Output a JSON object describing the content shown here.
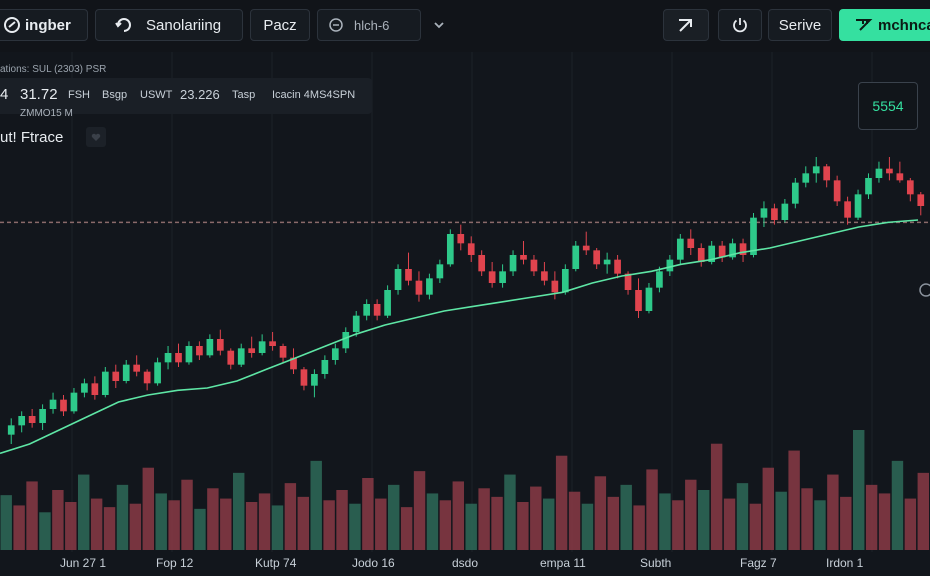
{
  "toolbar": {
    "logo_label": "ingber",
    "symbol_search_label": "Sanolariing",
    "interval_label": "Pacz",
    "compare_label": "hlch-6",
    "replay_icon": "arrow-up-right-icon",
    "power_icon": "power-icon",
    "save_label": "Serive",
    "publish_label": "mchncal"
  },
  "legend": {
    "symbol_line": "ations: SUL (2303) PSR",
    "open_value": "31.72",
    "item1": "FSH",
    "item2": "Bsgp",
    "item3": "USWT",
    "item4": "23.226",
    "item5": "Tasp",
    "item6": "Icacin 4MS4SPN",
    "sub_line": "ZMMO15 M",
    "indicator_label": "ut! Ftrace",
    "prefix": "4"
  },
  "price_label": "5554",
  "x_axis_labels": [
    "Jun 27 1",
    "Fop 12",
    "Kutp 74",
    "Jodo 16",
    "dsdo",
    "empa 11",
    "Subth",
    "Fagz 7",
    "Irdon 1"
  ],
  "chart_data": {
    "type": "candlestick",
    "candles": [
      [
        28.6,
        29.3,
        28.2,
        29.0
      ],
      [
        29.0,
        29.6,
        28.7,
        29.4
      ],
      [
        29.4,
        29.7,
        28.9,
        29.1
      ],
      [
        29.1,
        29.9,
        28.8,
        29.7
      ],
      [
        29.7,
        30.4,
        29.5,
        30.1
      ],
      [
        30.1,
        30.3,
        29.4,
        29.6
      ],
      [
        29.6,
        30.6,
        29.5,
        30.4
      ],
      [
        30.4,
        31.0,
        30.2,
        30.8
      ],
      [
        30.8,
        31.1,
        30.1,
        30.3
      ],
      [
        30.3,
        31.5,
        30.2,
        31.3
      ],
      [
        31.3,
        31.6,
        30.6,
        30.9
      ],
      [
        30.9,
        31.8,
        30.8,
        31.6
      ],
      [
        31.6,
        32.0,
        31.1,
        31.3
      ],
      [
        31.3,
        31.4,
        30.5,
        30.8
      ],
      [
        30.8,
        31.9,
        30.7,
        31.7
      ],
      [
        31.7,
        32.4,
        31.4,
        32.1
      ],
      [
        32.1,
        32.5,
        31.5,
        31.7
      ],
      [
        31.7,
        32.6,
        31.6,
        32.4
      ],
      [
        32.4,
        32.6,
        31.8,
        32.0
      ],
      [
        32.0,
        32.9,
        31.9,
        32.7
      ],
      [
        32.7,
        33.1,
        32.0,
        32.2
      ],
      [
        32.2,
        32.3,
        31.4,
        31.6
      ],
      [
        31.6,
        32.5,
        31.5,
        32.3
      ],
      [
        32.3,
        32.8,
        31.9,
        32.1
      ],
      [
        32.1,
        32.9,
        32.0,
        32.6
      ],
      [
        32.6,
        33.0,
        32.2,
        32.4
      ],
      [
        32.4,
        32.5,
        31.7,
        31.9
      ],
      [
        31.9,
        32.3,
        31.2,
        31.4
      ],
      [
        31.4,
        31.5,
        30.5,
        30.7
      ],
      [
        30.7,
        31.4,
        30.2,
        31.2
      ],
      [
        31.2,
        32.0,
        31.0,
        31.8
      ],
      [
        31.8,
        32.5,
        31.6,
        32.3
      ],
      [
        32.3,
        33.2,
        32.1,
        33.0
      ],
      [
        33.0,
        33.9,
        32.8,
        33.7
      ],
      [
        33.7,
        34.4,
        33.5,
        34.2
      ],
      [
        34.2,
        34.4,
        33.5,
        33.7
      ],
      [
        33.7,
        35.0,
        33.6,
        34.8
      ],
      [
        34.8,
        35.9,
        34.6,
        35.7
      ],
      [
        35.7,
        36.4,
        35.0,
        35.2
      ],
      [
        35.2,
        35.6,
        34.3,
        34.6
      ],
      [
        34.6,
        35.5,
        34.4,
        35.3
      ],
      [
        35.3,
        36.1,
        35.1,
        35.9
      ],
      [
        35.9,
        37.4,
        35.8,
        37.2
      ],
      [
        37.2,
        37.6,
        36.5,
        36.8
      ],
      [
        36.8,
        37.1,
        36.0,
        36.3
      ],
      [
        36.3,
        36.5,
        35.4,
        35.6
      ],
      [
        35.6,
        36.0,
        34.9,
        35.1
      ],
      [
        35.1,
        35.9,
        34.9,
        35.6
      ],
      [
        35.6,
        36.5,
        35.4,
        36.3
      ],
      [
        36.3,
        36.9,
        35.9,
        36.1
      ],
      [
        36.1,
        36.3,
        35.4,
        35.6
      ],
      [
        35.6,
        36.0,
        35.0,
        35.2
      ],
      [
        35.2,
        35.6,
        34.4,
        34.7
      ],
      [
        34.7,
        35.9,
        34.6,
        35.7
      ],
      [
        35.7,
        36.9,
        35.6,
        36.7
      ],
      [
        36.7,
        37.3,
        36.3,
        36.5
      ],
      [
        36.5,
        36.6,
        35.7,
        35.9
      ],
      [
        35.9,
        36.4,
        35.5,
        36.1
      ],
      [
        36.1,
        36.3,
        35.3,
        35.5
      ],
      [
        35.5,
        35.6,
        34.6,
        34.8
      ],
      [
        34.8,
        35.3,
        33.6,
        33.9
      ],
      [
        33.9,
        35.1,
        33.8,
        34.9
      ],
      [
        34.9,
        35.8,
        34.7,
        35.6
      ],
      [
        35.6,
        36.3,
        35.4,
        36.1
      ],
      [
        36.1,
        37.2,
        35.9,
        37.0
      ],
      [
        37.0,
        37.4,
        36.3,
        36.6
      ],
      [
        36.6,
        36.8,
        35.8,
        36.0
      ],
      [
        36.0,
        36.9,
        35.9,
        36.7
      ],
      [
        36.7,
        36.9,
        36.0,
        36.2
      ],
      [
        36.2,
        37.0,
        36.1,
        36.8
      ],
      [
        36.8,
        37.0,
        36.0,
        36.3
      ],
      [
        36.3,
        38.1,
        36.2,
        37.9
      ],
      [
        37.9,
        38.6,
        37.5,
        38.3
      ],
      [
        38.3,
        38.5,
        37.6,
        37.8
      ],
      [
        37.8,
        38.7,
        37.7,
        38.5
      ],
      [
        38.5,
        39.6,
        38.3,
        39.4
      ],
      [
        39.4,
        40.1,
        39.2,
        39.8
      ],
      [
        39.8,
        40.5,
        39.4,
        40.1
      ],
      [
        40.1,
        40.2,
        39.2,
        39.5
      ],
      [
        39.5,
        39.7,
        38.4,
        38.6
      ],
      [
        38.6,
        38.8,
        37.6,
        37.9
      ],
      [
        37.9,
        39.1,
        37.8,
        38.9
      ],
      [
        38.9,
        39.8,
        38.7,
        39.6
      ],
      [
        39.6,
        40.3,
        39.4,
        40.0
      ],
      [
        40.0,
        40.5,
        39.5,
        39.8
      ],
      [
        39.8,
        40.3,
        39.4,
        39.5
      ],
      [
        39.5,
        39.6,
        38.6,
        38.9
      ],
      [
        38.9,
        39.0,
        38.0,
        38.4
      ]
    ],
    "moving_average": [
      27.8,
      28.2,
      28.8,
      29.4,
      30.0,
      30.3,
      30.5,
      30.6,
      30.9,
      31.4,
      31.9,
      32.4,
      32.9,
      33.3,
      33.6,
      33.9,
      34.1,
      34.3,
      34.5,
      34.7,
      35.1,
      35.4,
      35.6,
      35.9,
      36.1,
      36.4,
      36.6,
      36.9,
      37.2,
      37.5,
      37.7,
      37.8
    ],
    "volumes": [
      32,
      26,
      40,
      22,
      35,
      28,
      44,
      30,
      25,
      38,
      27,
      48,
      33,
      29,
      41,
      24,
      36,
      30,
      45,
      28,
      33,
      26,
      39,
      31,
      52,
      29,
      35,
      27,
      42,
      30,
      38,
      25,
      46,
      33,
      29,
      40,
      27,
      36,
      31,
      44,
      28,
      37,
      30,
      55,
      34,
      27,
      43,
      31,
      38,
      26,
      47,
      33,
      29,
      41,
      35,
      62,
      30,
      39,
      27,
      48,
      34,
      58,
      36,
      29,
      44,
      31,
      70,
      38,
      33,
      52,
      30,
      45
    ],
    "price_line": 37.7,
    "ylim": [
      27,
      42
    ]
  }
}
